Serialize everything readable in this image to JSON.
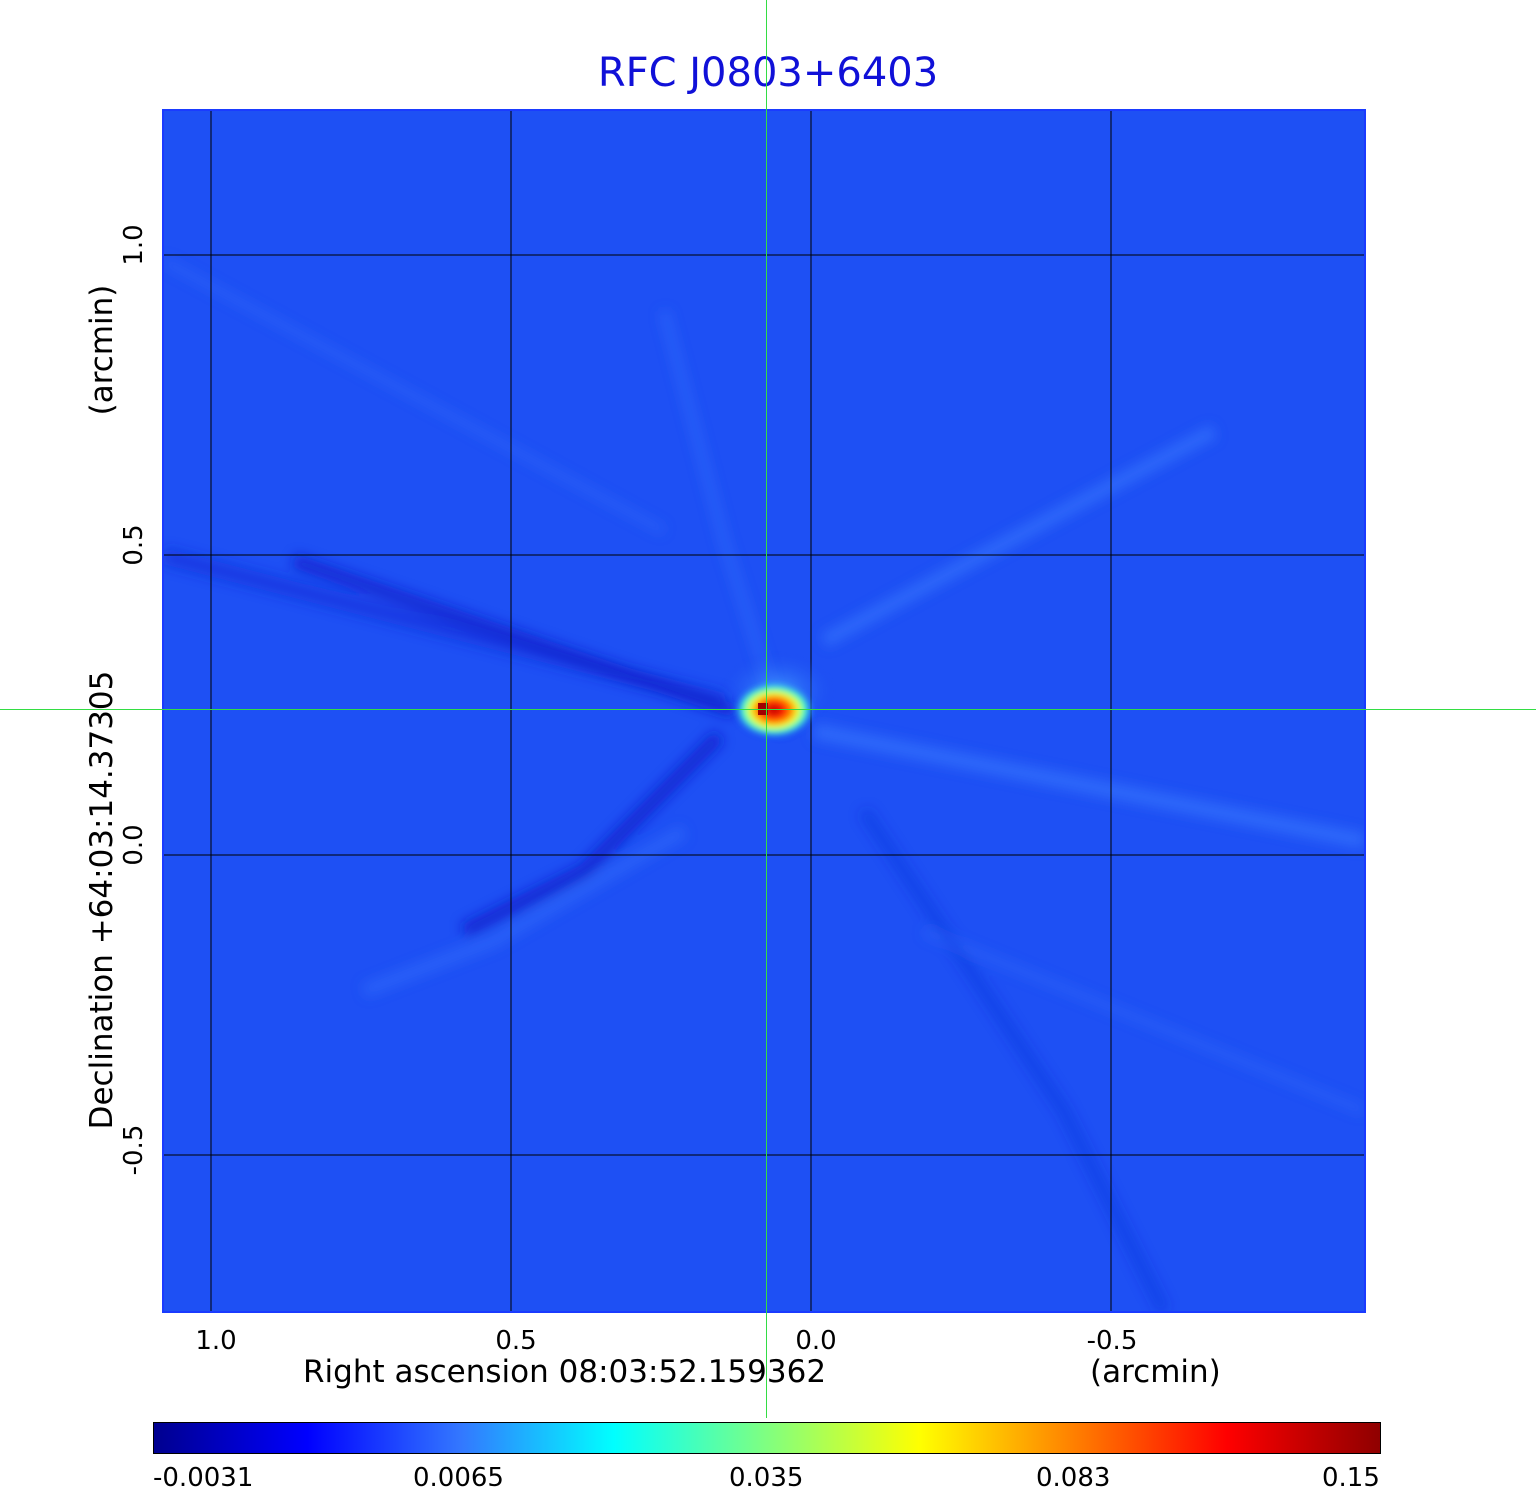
{
  "title": "RFC J0803+6403",
  "x_axis": {
    "label": "Right ascension  08:03:52.159362",
    "unit": "(arcmin)",
    "ticks": [
      "1.0",
      "0.5",
      "0.0",
      "-0.5"
    ]
  },
  "y_axis": {
    "label": "Declination  +64:03:14.37305",
    "unit": "(arcmin)",
    "ticks": [
      "1.0",
      "0.5",
      "0.0",
      "-0.5"
    ]
  },
  "colorbar": {
    "ticks": [
      "-0.0031",
      "0.0065",
      "0.035",
      "0.083",
      "0.15"
    ],
    "colors": [
      "#00008f",
      "#0000ff",
      "#3377ff",
      "#00ffff",
      "#80ff80",
      "#ffff00",
      "#ff8000",
      "#ff0000",
      "#8f0000"
    ]
  },
  "colors": {
    "title": "#1010d8",
    "background_map": "#1e50f4",
    "crosshair": "#33dd44",
    "grid": "#000000"
  }
}
